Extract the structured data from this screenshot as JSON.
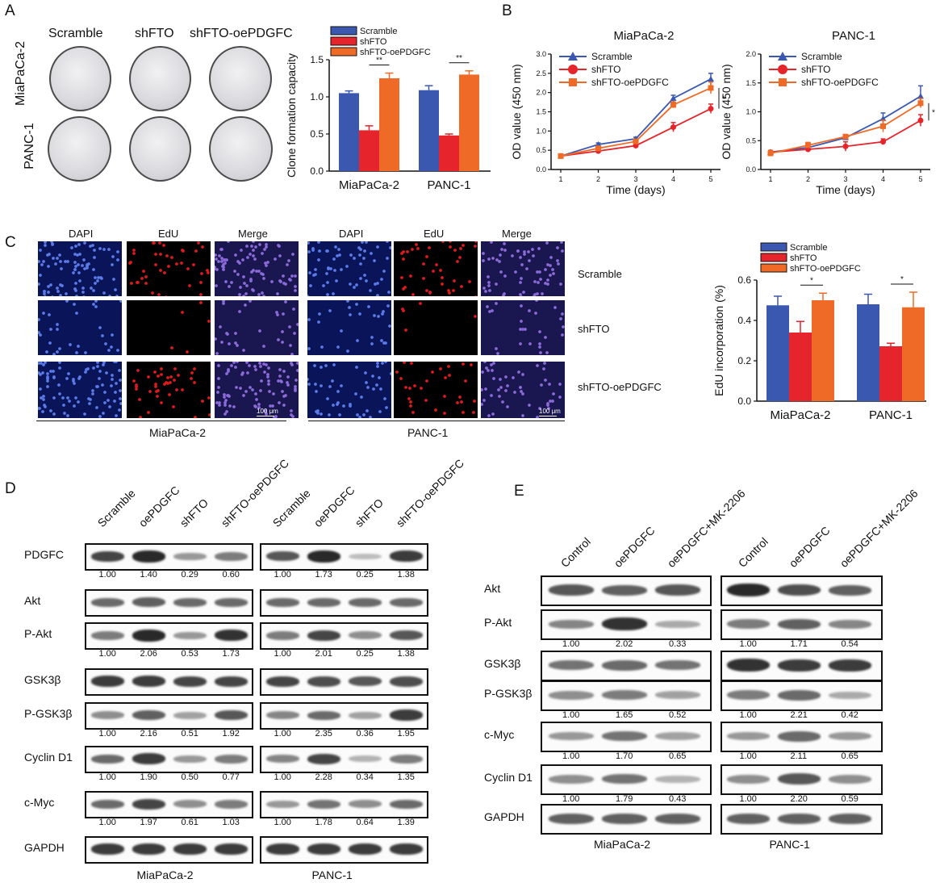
{
  "panels": {
    "A": "A",
    "B": "B",
    "C": "C",
    "D": "D",
    "E": "E"
  },
  "colors": {
    "scramble": "#3a58b0",
    "shFTO": "#e5242b",
    "shFTO_oePDGFC": "#f06a27"
  },
  "panelA": {
    "col_labels": [
      "Scramble",
      "shFTO",
      "shFTO-oePDGFC"
    ],
    "row_labels": [
      "MiaPaCa-2",
      "PANC-1"
    ]
  },
  "panelC": {
    "col_labels": [
      "DAPI",
      "EdU",
      "Merge",
      "DAPI",
      "EdU",
      "Merge"
    ],
    "row_labels": [
      "Scramble",
      "shFTO",
      "shFTO-oePDGFC"
    ],
    "scale_bar": "100 μm",
    "group_labels": [
      "MiaPaCa-2",
      "PANC-1"
    ]
  },
  "chart_data": [
    {
      "type": "bar",
      "ylabel": "Clone formation capacity",
      "categories": [
        "MiaPaCa-2",
        "PANC-1"
      ],
      "series": [
        {
          "name": "Scramble",
          "values": [
            1.05,
            1.09
          ],
          "err": [
            0.03,
            0.06
          ]
        },
        {
          "name": "shFTO",
          "values": [
            0.55,
            0.48
          ],
          "err": [
            0.06,
            0.02
          ]
        },
        {
          "name": "shFTO-oePDGFC",
          "values": [
            1.25,
            1.3
          ],
          "err": [
            0.07,
            0.05
          ]
        }
      ],
      "ylim": [
        0,
        1.5
      ],
      "yticks": [
        "0.0",
        "0.5",
        "1.0",
        "1.5"
      ],
      "significance": [
        "**",
        "**"
      ],
      "legend": "top-left"
    },
    {
      "type": "line",
      "title": "MiaPaCa-2",
      "xlabel": "Time (days)",
      "ylabel": "OD value (450 nm)",
      "x": [
        1,
        2,
        3,
        4,
        5
      ],
      "series": [
        {
          "name": "Scramble",
          "values": [
            0.35,
            0.65,
            0.8,
            1.85,
            2.35
          ],
          "err": [
            0.02,
            0.04,
            0.04,
            0.08,
            0.15
          ]
        },
        {
          "name": "shFTO",
          "values": [
            0.35,
            0.48,
            0.62,
            1.1,
            1.58
          ],
          "err": [
            0.02,
            0.03,
            0.04,
            0.12,
            0.12
          ]
        },
        {
          "name": "shFTO-oePDGFC",
          "values": [
            0.35,
            0.55,
            0.73,
            1.68,
            2.12
          ],
          "err": [
            0.02,
            0.03,
            0.04,
            0.08,
            0.15
          ]
        }
      ],
      "ylim": [
        0,
        3.0
      ],
      "yticks": [
        "0.0",
        "0.5",
        "1.0",
        "1.5",
        "2.0",
        "2.5",
        "3.0"
      ],
      "significance": [
        "*"
      ],
      "legend": "top-left"
    },
    {
      "type": "line",
      "title": "PANC-1",
      "xlabel": "Time (days)",
      "ylabel": "OD value (450 nm)",
      "x": [
        1,
        2,
        3,
        4,
        5
      ],
      "series": [
        {
          "name": "Scramble",
          "values": [
            0.3,
            0.38,
            0.55,
            0.88,
            1.27
          ],
          "err": [
            0.03,
            0.03,
            0.04,
            0.1,
            0.18
          ]
        },
        {
          "name": "shFTO",
          "values": [
            0.3,
            0.35,
            0.4,
            0.48,
            0.85
          ],
          "err": [
            0.03,
            0.03,
            0.08,
            0.05,
            0.1
          ]
        },
        {
          "name": "shFTO-oePDGFC",
          "values": [
            0.28,
            0.42,
            0.57,
            0.75,
            1.15
          ],
          "err": [
            0.05,
            0.05,
            0.03,
            0.1,
            0.08
          ]
        }
      ],
      "ylim": [
        0,
        2.0
      ],
      "yticks": [
        "0.0",
        "0.5",
        "1.0",
        "1.5",
        "2.0"
      ],
      "significance": [
        "*"
      ],
      "legend": "top-left"
    },
    {
      "type": "bar",
      "ylabel": "EdU incorporation (%)",
      "categories": [
        "MiaPaCa-2",
        "PANC-1"
      ],
      "series": [
        {
          "name": "Scramble",
          "values": [
            0.475,
            0.48
          ],
          "err": [
            0.045,
            0.05
          ]
        },
        {
          "name": "shFTO",
          "values": [
            0.34,
            0.272
          ],
          "err": [
            0.055,
            0.015
          ]
        },
        {
          "name": "shFTO-oePDGFC",
          "values": [
            0.5,
            0.465
          ],
          "err": [
            0.035,
            0.075
          ]
        }
      ],
      "ylim": [
        0,
        0.6
      ],
      "yticks": [
        "0.0",
        "0.2",
        "0.4",
        "0.6"
      ],
      "significance": [
        "*",
        "*"
      ],
      "legend": "top-left"
    }
  ],
  "panelD": {
    "lanes": [
      "Scramble",
      "oePDGFC",
      "shFTO",
      "shFTO-oePDGFC"
    ],
    "groups": [
      "MiaPaCa-2",
      "PANC-1"
    ],
    "rows": [
      {
        "label": "PDGFC",
        "quant": [
          [
            "1.00",
            "1.40",
            "0.29",
            "0.60"
          ],
          [
            "1.00",
            "1.73",
            "0.25",
            "1.38"
          ]
        ],
        "level": [
          [
            0.8,
            0.95,
            0.35,
            0.5
          ],
          [
            0.7,
            0.95,
            0.15,
            0.85
          ]
        ]
      },
      {
        "label": "Akt",
        "quant": null,
        "level": [
          [
            0.6,
            0.65,
            0.6,
            0.6
          ],
          [
            0.6,
            0.6,
            0.6,
            0.6
          ]
        ]
      },
      {
        "label": "P-Akt",
        "quant": [
          [
            "1.00",
            "2.06",
            "0.53",
            "1.73"
          ],
          [
            "1.00",
            "2.01",
            "0.25",
            "1.38"
          ]
        ],
        "level": [
          [
            0.5,
            0.95,
            0.35,
            0.9
          ],
          [
            0.5,
            0.8,
            0.4,
            0.7
          ]
        ]
      },
      {
        "label": "GSK3β",
        "quant": null,
        "level": [
          [
            0.85,
            0.85,
            0.8,
            0.8
          ],
          [
            0.8,
            0.75,
            0.7,
            0.75
          ]
        ]
      },
      {
        "label": "P-GSK3β",
        "quant": [
          [
            "1.00",
            "2.16",
            "0.51",
            "1.92"
          ],
          [
            "1.00",
            "2.35",
            "0.36",
            "1.95"
          ]
        ],
        "level": [
          [
            0.4,
            0.65,
            0.3,
            0.7
          ],
          [
            0.45,
            0.6,
            0.3,
            0.85
          ]
        ]
      },
      {
        "label": "Cyclin D1",
        "quant": [
          [
            "1.00",
            "1.90",
            "0.50",
            "0.77"
          ],
          [
            "1.00",
            "2.28",
            "0.34",
            "1.35"
          ]
        ],
        "level": [
          [
            0.6,
            0.85,
            0.35,
            0.5
          ],
          [
            0.45,
            0.8,
            0.2,
            0.5
          ]
        ]
      },
      {
        "label": "c-Myc",
        "quant": [
          [
            "1.00",
            "1.97",
            "0.61",
            "1.03"
          ],
          [
            "1.00",
            "1.78",
            "0.64",
            "1.39"
          ]
        ],
        "level": [
          [
            0.6,
            0.8,
            0.4,
            0.5
          ],
          [
            0.35,
            0.55,
            0.4,
            0.6
          ]
        ]
      },
      {
        "label": "GAPDH",
        "quant": null,
        "level": [
          [
            0.85,
            0.85,
            0.85,
            0.85
          ],
          [
            0.85,
            0.85,
            0.85,
            0.85
          ]
        ]
      }
    ]
  },
  "panelE": {
    "lanes": [
      "Control",
      "oePDGFC",
      "oePDGFC+MK-2206"
    ],
    "groups": [
      "MiaPaCa-2",
      "PANC-1"
    ],
    "rows": [
      {
        "label": "Akt",
        "quant": null,
        "level": [
          [
            0.7,
            0.65,
            0.7
          ],
          [
            0.95,
            0.75,
            0.65
          ]
        ]
      },
      {
        "label": "P-Akt",
        "quant": [
          [
            "1.00",
            "2.02",
            "0.33"
          ],
          [
            "1.00",
            "1.71",
            "0.54"
          ]
        ],
        "level": [
          [
            0.45,
            0.9,
            0.25
          ],
          [
            0.5,
            0.65,
            0.45
          ]
        ]
      },
      {
        "label": "GSK3β",
        "quant": null,
        "level": [
          [
            0.55,
            0.6,
            0.55
          ],
          [
            0.9,
            0.85,
            0.85
          ]
        ]
      },
      {
        "label": "P-GSK3β",
        "quant": [
          [
            "1.00",
            "1.65",
            "0.52"
          ],
          [
            "1.00",
            "2.21",
            "0.42"
          ]
        ],
        "level": [
          [
            0.4,
            0.5,
            0.3
          ],
          [
            0.5,
            0.6,
            0.25
          ]
        ]
      },
      {
        "label": "c-Myc",
        "quant": [
          [
            "1.00",
            "1.70",
            "0.65"
          ],
          [
            "1.00",
            "2.11",
            "0.65"
          ]
        ],
        "level": [
          [
            0.35,
            0.55,
            0.3
          ],
          [
            0.35,
            0.6,
            0.35
          ]
        ]
      },
      {
        "label": "Cyclin D1",
        "quant": [
          [
            "1.00",
            "1.79",
            "0.43"
          ],
          [
            "1.00",
            "2.20",
            "0.59"
          ]
        ],
        "level": [
          [
            0.4,
            0.55,
            0.2
          ],
          [
            0.4,
            0.7,
            0.4
          ]
        ]
      },
      {
        "label": "GAPDH",
        "quant": null,
        "level": [
          [
            0.65,
            0.65,
            0.65
          ],
          [
            0.65,
            0.65,
            0.65
          ]
        ]
      }
    ]
  }
}
